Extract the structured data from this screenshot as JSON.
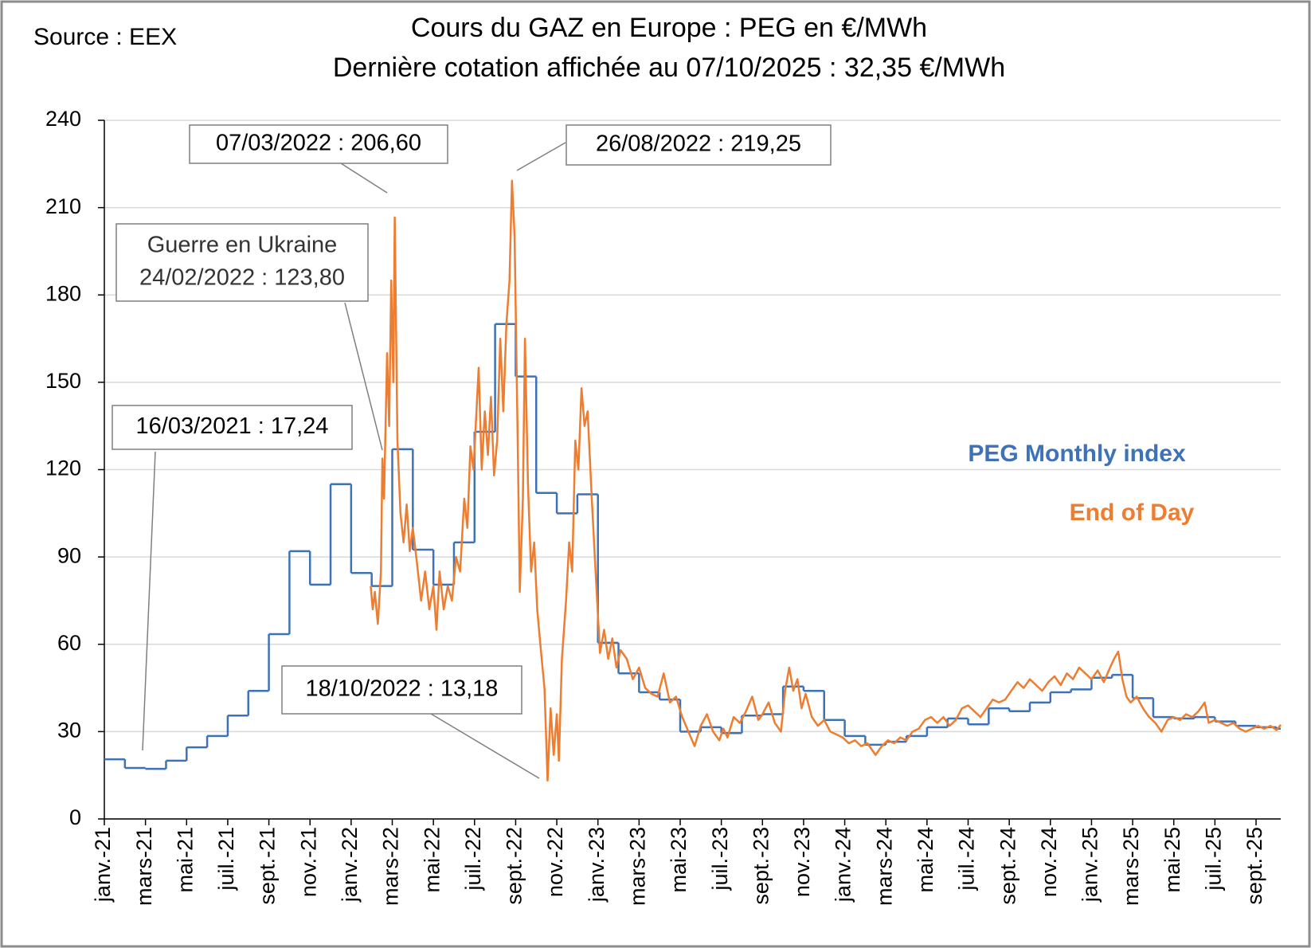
{
  "chart_data": {
    "type": "line",
    "source": "Source : EEX",
    "title": "Cours du GAZ en Europe : PEG en €/MWh",
    "subtitle": "Dernière cotation affichée au 07/10/2025 : 32,35 €/MWh",
    "xlim": [
      0,
      57.2
    ],
    "xticks": [
      {
        "value": 0,
        "label": "janv.-21"
      },
      {
        "value": 2,
        "label": "mars-21"
      },
      {
        "value": 4,
        "label": "mai-21"
      },
      {
        "value": 6,
        "label": "juil.-21"
      },
      {
        "value": 8,
        "label": "sept.-21"
      },
      {
        "value": 10,
        "label": "nov.-21"
      },
      {
        "value": 12,
        "label": "janv.-22"
      },
      {
        "value": 14,
        "label": "mars-22"
      },
      {
        "value": 16,
        "label": "mai-22"
      },
      {
        "value": 18,
        "label": "juil.-22"
      },
      {
        "value": 20,
        "label": "sept.-22"
      },
      {
        "value": 22,
        "label": "nov.-22"
      },
      {
        "value": 24,
        "label": "janv.-23"
      },
      {
        "value": 26,
        "label": "mars-23"
      },
      {
        "value": 28,
        "label": "mai-23"
      },
      {
        "value": 30,
        "label": "juil.-23"
      },
      {
        "value": 32,
        "label": "sept.-23"
      },
      {
        "value": 34,
        "label": "nov.-23"
      },
      {
        "value": 36,
        "label": "janv.-24"
      },
      {
        "value": 38,
        "label": "mars-24"
      },
      {
        "value": 40,
        "label": "mai-24"
      },
      {
        "value": 42,
        "label": "juil.-24"
      },
      {
        "value": 44,
        "label": "sept.-24"
      },
      {
        "value": 46,
        "label": "nov.-24"
      },
      {
        "value": 48,
        "label": "janv.-25"
      },
      {
        "value": 50,
        "label": "mars-25"
      },
      {
        "value": 52,
        "label": "mai-25"
      },
      {
        "value": 54,
        "label": "juil.-25"
      },
      {
        "value": 56,
        "label": "sept.-25"
      }
    ],
    "ylim": [
      0,
      240
    ],
    "yticks": [
      0,
      30,
      60,
      90,
      120,
      150,
      180,
      210,
      240
    ],
    "grid": true,
    "series": [
      {
        "name": "PEG Monthly index",
        "color": "#3e72b8",
        "step": true,
        "x": [
          0,
          1,
          2,
          3,
          4,
          5,
          6,
          7,
          8,
          9,
          10,
          11,
          12,
          13,
          14,
          15,
          16,
          17,
          18,
          19,
          20,
          21,
          22,
          23,
          24,
          25,
          26,
          27,
          28,
          29,
          30,
          31,
          32,
          33,
          34,
          35,
          36,
          37,
          38,
          39,
          40,
          41,
          42,
          43,
          44,
          45,
          46,
          47,
          48,
          49,
          50,
          51,
          52,
          53,
          54,
          55,
          56,
          57
        ],
        "values": [
          20.5,
          17.5,
          17.2,
          20,
          24.6,
          28.5,
          35.5,
          44,
          63.5,
          92,
          80.5,
          115,
          84.5,
          80,
          127,
          92.5,
          80.5,
          95,
          133,
          170,
          152,
          112,
          105,
          111.5,
          60.5,
          50,
          43.5,
          41,
          30,
          31.5,
          29.5,
          35.5,
          36,
          45.5,
          44,
          34,
          28.5,
          25.5,
          26.5,
          28.5,
          31.5,
          34.5,
          32.5,
          38,
          37,
          40,
          43.5,
          44.5,
          48.5,
          49.5,
          41.5,
          35,
          34.5,
          35,
          33.5,
          32,
          31.5,
          31
        ]
      },
      {
        "name": "End of Day",
        "color": "#ed7d31",
        "step": false,
        "x": [
          12.95,
          13.05,
          13.15,
          13.3,
          13.45,
          13.52,
          13.6,
          13.75,
          13.85,
          13.95,
          14.05,
          14.12,
          14.25,
          14.4,
          14.55,
          14.7,
          14.85,
          15.0,
          15.2,
          15.4,
          15.6,
          15.8,
          16.0,
          16.15,
          16.3,
          16.5,
          16.7,
          16.9,
          17.1,
          17.3,
          17.5,
          17.65,
          17.8,
          17.95,
          18.2,
          18.35,
          18.5,
          18.65,
          18.8,
          18.95,
          19.1,
          19.25,
          19.4,
          19.55,
          19.7,
          19.82,
          19.95,
          20.1,
          20.2,
          20.35,
          20.45,
          20.6,
          20.75,
          20.9,
          21.05,
          21.2,
          21.4,
          21.55,
          21.7,
          21.85,
          22.0,
          22.1,
          22.25,
          22.45,
          22.6,
          22.75,
          22.9,
          23.05,
          23.2,
          23.35,
          23.5,
          23.7,
          23.85,
          24.0,
          24.1,
          24.3,
          24.5,
          24.7,
          24.9,
          25.1,
          25.4,
          25.7,
          26.0,
          26.3,
          26.6,
          26.9,
          27.2,
          27.5,
          27.8,
          28.1,
          28.4,
          28.7,
          29.0,
          29.3,
          29.6,
          29.9,
          30.1,
          30.3,
          30.6,
          30.9,
          31.2,
          31.5,
          31.8,
          32.0,
          32.3,
          32.6,
          32.9,
          33.1,
          33.3,
          33.5,
          33.7,
          33.9,
          34.1,
          34.4,
          34.7,
          35.0,
          35.3,
          35.6,
          35.9,
          36.2,
          36.5,
          36.8,
          37.1,
          37.5,
          37.8,
          38.1,
          38.4,
          38.7,
          39.0,
          39.3,
          39.6,
          39.9,
          40.2,
          40.5,
          40.8,
          41.1,
          41.4,
          41.7,
          42.0,
          42.3,
          42.6,
          42.9,
          43.2,
          43.5,
          43.8,
          44.1,
          44.4,
          44.7,
          45.0,
          45.3,
          45.6,
          45.9,
          46.2,
          46.5,
          46.8,
          47.1,
          47.4,
          47.7,
          48.0,
          48.3,
          48.6,
          48.9,
          49.1,
          49.3,
          49.5,
          49.7,
          49.9,
          50.2,
          50.5,
          50.8,
          51.1,
          51.4,
          51.7,
          52.0,
          52.3,
          52.6,
          52.9,
          53.2,
          53.5,
          53.7,
          54.0,
          54.3,
          54.6,
          54.9,
          55.2,
          55.5,
          55.8,
          56.1,
          56.4,
          56.7,
          57.0,
          57.2
        ],
        "values": [
          80,
          72,
          78,
          67,
          85,
          123.8,
          110,
          160,
          135,
          185,
          150,
          206.6,
          130,
          105,
          95,
          108,
          92,
          100,
          88,
          75,
          85,
          72,
          80,
          65,
          85,
          72,
          80,
          75,
          90,
          85,
          110,
          100,
          128,
          120,
          155,
          120,
          140,
          125,
          145,
          118,
          130,
          165,
          140,
          170,
          185,
          219.25,
          200,
          130,
          78,
          110,
          165,
          115,
          85,
          95,
          72,
          60,
          45,
          13.18,
          38,
          22,
          36,
          20,
          55,
          75,
          95,
          85,
          130,
          120,
          148,
          135,
          140,
          110,
          90,
          70,
          57,
          65,
          55,
          62,
          52,
          58,
          55,
          48,
          52,
          45,
          43,
          42,
          50,
          40,
          42,
          35,
          30,
          25,
          32,
          36,
          30,
          27,
          31,
          28,
          35,
          33,
          37,
          42,
          34,
          36,
          40,
          33,
          30,
          44,
          52,
          44,
          48,
          38,
          43,
          35,
          32,
          34,
          30,
          29,
          28,
          26,
          27,
          25,
          26,
          22,
          25,
          27,
          26,
          28,
          27,
          30,
          31,
          34,
          35,
          33,
          35,
          32,
          34,
          38,
          39,
          37,
          35,
          38,
          41,
          40,
          41,
          44,
          47,
          45,
          48,
          46,
          44,
          47,
          49,
          46,
          50,
          48,
          52,
          50,
          48,
          51,
          47,
          52,
          55,
          57.5,
          48,
          42,
          40,
          42,
          38,
          35,
          33,
          30,
          34,
          35,
          34,
          36,
          35,
          37,
          40,
          33,
          34,
          33,
          32,
          33,
          31,
          30,
          31,
          32,
          31,
          32,
          30.5,
          32.35
        ]
      }
    ],
    "annotations": [
      {
        "lines": [
          "16/03/2021 : 17,24"
        ]
      },
      {
        "lines": [
          "Guerre en Ukraine",
          "24/02/2022 : 123,80"
        ]
      },
      {
        "lines": [
          "07/03/2022 : 206,60"
        ]
      },
      {
        "lines": [
          "26/08/2022 : 219,25"
        ]
      },
      {
        "lines": [
          "18/10/2022 : 13,18"
        ]
      }
    ]
  }
}
